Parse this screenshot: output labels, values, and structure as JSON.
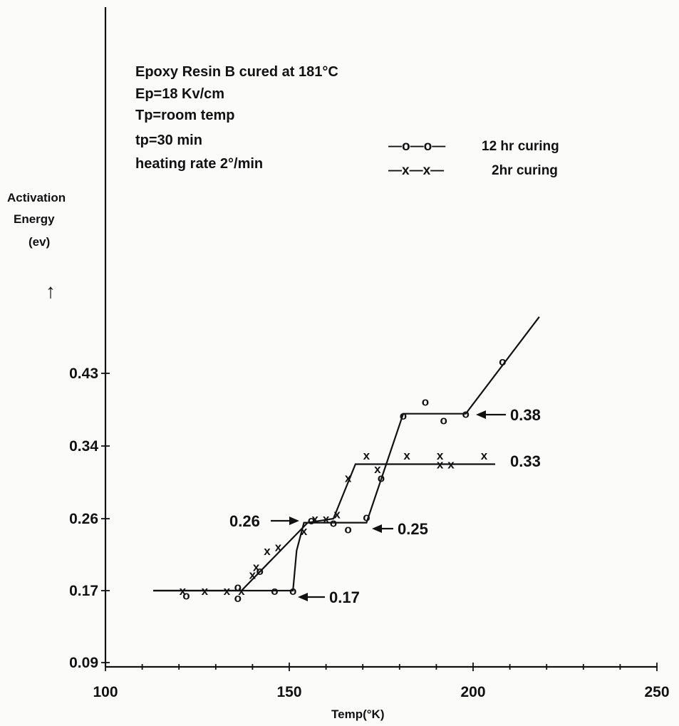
{
  "chart_data": {
    "type": "line",
    "annotation_lines": [
      "Epoxy Resin B cured at 181°C",
      "Ep=18 Kv/cm",
      "Tp=room temp",
      "tp=30 min",
      "heating rate 2°/min"
    ],
    "ylabel_lines": [
      "Activation",
      "Energy",
      "(ev)"
    ],
    "ylabel_arrow": "↑",
    "xlabel": "Temp(°K)",
    "x_ticks": [
      100,
      150,
      200,
      250
    ],
    "y_ticks": [
      0.09,
      0.17,
      0.26,
      0.34,
      0.43
    ],
    "y_tick_labels": [
      "0.09",
      "0.17",
      "0.26",
      "0.34",
      "0.43"
    ],
    "xlim": [
      100,
      250
    ],
    "y_scale": "categorical-ticks",
    "legend": [
      {
        "symbol": "—o—o—",
        "label": "12 hr curing"
      },
      {
        "symbol": "—x—x—",
        "label": "2hr curing"
      }
    ],
    "series": [
      {
        "name": "12 hr curing",
        "marker": "o",
        "points": [
          [
            122,
            0.165
          ],
          [
            136,
            0.175
          ],
          [
            136,
            0.162
          ],
          [
            142,
            0.195
          ],
          [
            146,
            0.17
          ],
          [
            151,
            0.17
          ],
          [
            156,
            0.258
          ],
          [
            162,
            0.255
          ],
          [
            166,
            0.247
          ],
          [
            171,
            0.262
          ],
          [
            175,
            0.305
          ],
          [
            181,
            0.378
          ],
          [
            187,
            0.395
          ],
          [
            192,
            0.372
          ],
          [
            198,
            0.38
          ],
          [
            208,
            0.445
          ]
        ],
        "line": [
          [
            113,
            0.17
          ],
          [
            151,
            0.17
          ],
          [
            152,
            0.22
          ],
          [
            154,
            0.255
          ],
          [
            171,
            0.255
          ],
          [
            181,
            0.38
          ],
          [
            198,
            0.38
          ],
          [
            218,
            0.5
          ]
        ]
      },
      {
        "name": "2hr curing",
        "marker": "x",
        "points": [
          [
            121,
            0.17
          ],
          [
            127,
            0.17
          ],
          [
            133,
            0.17
          ],
          [
            137,
            0.17
          ],
          [
            140,
            0.19
          ],
          [
            141,
            0.2
          ],
          [
            144,
            0.22
          ],
          [
            147,
            0.225
          ],
          [
            154,
            0.245
          ],
          [
            157,
            0.26
          ],
          [
            160,
            0.26
          ],
          [
            163,
            0.265
          ],
          [
            166,
            0.305
          ],
          [
            171,
            0.33
          ],
          [
            174,
            0.315
          ],
          [
            182,
            0.33
          ],
          [
            191,
            0.33
          ],
          [
            191,
            0.32
          ],
          [
            194,
            0.32
          ],
          [
            203,
            0.33
          ]
        ],
        "line": [
          [
            113,
            0.17
          ],
          [
            137,
            0.17
          ],
          [
            155,
            0.255
          ],
          [
            162,
            0.26
          ],
          [
            168,
            0.32
          ],
          [
            206,
            0.32
          ]
        ]
      }
    ],
    "value_labels": [
      "0.38",
      "0.33",
      "0.26",
      "0.25",
      "0.17"
    ]
  }
}
